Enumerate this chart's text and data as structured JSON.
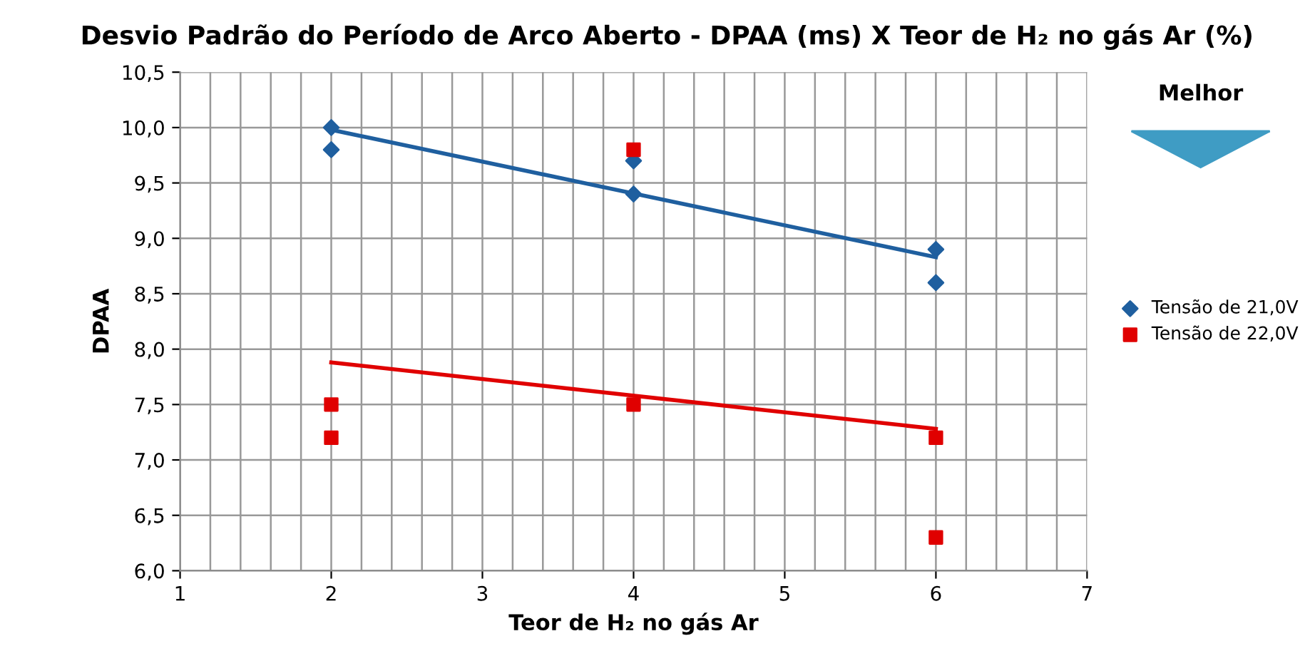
{
  "chart_data": {
    "type": "scatter",
    "title": "Desvio Padrão do Período de Arco Aberto - DPAA (ms) X Teor de H₂ no gás Ar (%)",
    "xlabel": "Teor de H₂ no gás Ar",
    "ylabel": "DPAA",
    "series": [
      {
        "name": "Tensão de 21,0V",
        "color": "#1f5f9f",
        "marker": "diamond",
        "x": [
          2,
          2,
          4,
          4,
          6,
          6
        ],
        "values": [
          10.0,
          9.8,
          9.7,
          9.4,
          8.9,
          8.6
        ]
      },
      {
        "name": "Tensão de 22,0V",
        "color": "#e00000",
        "marker": "square",
        "x": [
          2,
          2,
          4,
          4,
          6,
          6
        ],
        "values": [
          7.5,
          7.2,
          9.8,
          7.5,
          7.2,
          6.3
        ]
      },
      {
        "type": "line",
        "color": "#1f5f9f",
        "x": [
          2,
          6
        ],
        "values": [
          9.98,
          8.83
        ]
      },
      {
        "type": "line",
        "color": "#e00000",
        "x": [
          2,
          6
        ],
        "values": [
          7.88,
          7.28
        ]
      }
    ],
    "xlim": [
      1,
      7
    ],
    "ylim": [
      6.0,
      10.5
    ],
    "xticks": [
      1,
      {
        "value": 1.2,
        "label": null
      },
      {
        "value": 1.4,
        "label": null
      },
      {
        "value": 1.6,
        "label": null
      },
      {
        "value": 1.8,
        "label": null
      },
      2,
      {
        "value": 2.2,
        "label": null
      },
      {
        "value": 2.4,
        "label": null
      },
      {
        "value": 2.6,
        "label": null
      },
      {
        "value": 2.8,
        "label": null
      },
      3,
      {
        "value": 3.2,
        "label": null
      },
      {
        "value": 3.4,
        "label": null
      },
      {
        "value": 3.6,
        "label": null
      },
      {
        "value": 3.8,
        "label": null
      },
      4,
      {
        "value": 4.2,
        "label": null
      },
      {
        "value": 4.4,
        "label": null
      },
      {
        "value": 4.6,
        "label": null
      },
      {
        "value": 4.8,
        "label": null
      },
      5,
      {
        "value": 5.2,
        "label": null
      },
      {
        "value": 5.4,
        "label": null
      },
      {
        "value": 5.6,
        "label": null
      },
      {
        "value": 5.8,
        "label": null
      },
      6,
      {
        "value": 6.2,
        "label": null
      },
      {
        "value": 6.4,
        "label": null
      },
      {
        "value": 6.6,
        "label": null
      },
      {
        "value": 6.8,
        "label": null
      },
      7
    ],
    "yticks": [
      {
        "value": 6.0,
        "label": "6,0"
      },
      {
        "value": 6.5,
        "label": "6,5"
      },
      {
        "value": 7.0,
        "label": "7,0"
      },
      {
        "value": 7.5,
        "label": "7,5"
      },
      {
        "value": 8.0,
        "label": "8,0"
      },
      {
        "value": 8.5,
        "label": "8,5"
      },
      {
        "value": 9.0,
        "label": "9,0"
      },
      {
        "value": 9.5,
        "label": "9,5"
      },
      {
        "value": 10.0,
        "label": "10,0"
      },
      {
        "value": 10.5,
        "label": "10,5"
      }
    ],
    "grid": true,
    "legend": "right",
    "annotations": [
      "Melhor"
    ]
  }
}
